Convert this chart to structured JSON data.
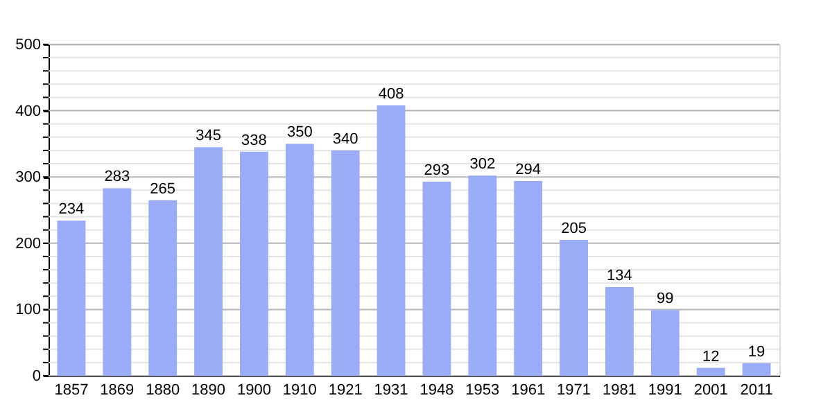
{
  "chart_data": {
    "type": "bar",
    "categories": [
      "1857",
      "1869",
      "1880",
      "1890",
      "1900",
      "1910",
      "1921",
      "1931",
      "1948",
      "1953",
      "1961",
      "1971",
      "1981",
      "1991",
      "2001",
      "2011"
    ],
    "values": [
      234,
      283,
      265,
      345,
      338,
      350,
      340,
      408,
      293,
      302,
      294,
      205,
      134,
      99,
      12,
      19
    ],
    "color": "#9aacf8",
    "data_labels": true,
    "grid": "y",
    "ylim": [
      0,
      500
    ],
    "yticks": [
      0,
      {
        "value": 20,
        "label": null
      },
      {
        "value": 40,
        "label": null
      },
      {
        "value": 60,
        "label": null
      },
      {
        "value": 80,
        "label": null
      },
      100,
      {
        "value": 120,
        "label": null
      },
      {
        "value": 140,
        "label": null
      },
      {
        "value": 160,
        "label": null
      },
      {
        "value": 180,
        "label": null
      },
      200,
      {
        "value": 220,
        "label": null
      },
      {
        "value": 240,
        "label": null
      },
      {
        "value": 260,
        "label": null
      },
      {
        "value": 280,
        "label": null
      },
      300,
      {
        "value": 320,
        "label": null
      },
      {
        "value": 340,
        "label": null
      },
      {
        "value": 360,
        "label": null
      },
      {
        "value": 380,
        "label": null
      },
      400,
      {
        "value": 420,
        "label": null
      },
      {
        "value": 440,
        "label": null
      },
      {
        "value": 460,
        "label": null
      },
      {
        "value": 480,
        "label": null
      },
      500
    ]
  }
}
